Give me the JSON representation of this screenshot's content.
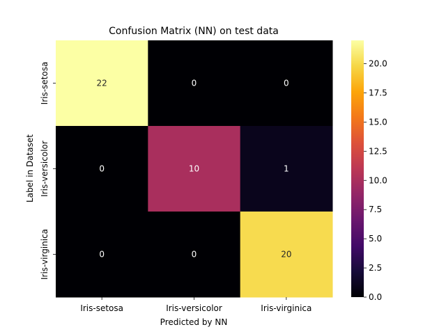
{
  "chart_data": {
    "type": "heatmap",
    "title": "Confusion Matrix (NN) on test data",
    "xlabel": "Predicted by NN",
    "ylabel": "Label in Dataset",
    "x_categories": [
      "Iris-setosa",
      "Iris-versicolor",
      "Iris-virginica"
    ],
    "y_categories": [
      "Iris-setosa",
      "Iris-versicolor",
      "Iris-virginica"
    ],
    "values": [
      [
        22,
        0,
        0
      ],
      [
        0,
        10,
        1
      ],
      [
        0,
        0,
        20
      ]
    ],
    "colorbar": {
      "colormap": "inferno",
      "range": [
        0,
        22
      ],
      "ticks": [
        0.0,
        2.5,
        5.0,
        7.5,
        10.0,
        12.5,
        15.0,
        17.5,
        20.0
      ],
      "tick_labels": [
        "0.0",
        "2.5",
        "5.0",
        "7.5",
        "10.0",
        "12.5",
        "15.0",
        "17.5",
        "20.0"
      ]
    },
    "colors": {
      "low_annotation_text": "#ffffff",
      "high_annotation_text": "#262626"
    }
  }
}
